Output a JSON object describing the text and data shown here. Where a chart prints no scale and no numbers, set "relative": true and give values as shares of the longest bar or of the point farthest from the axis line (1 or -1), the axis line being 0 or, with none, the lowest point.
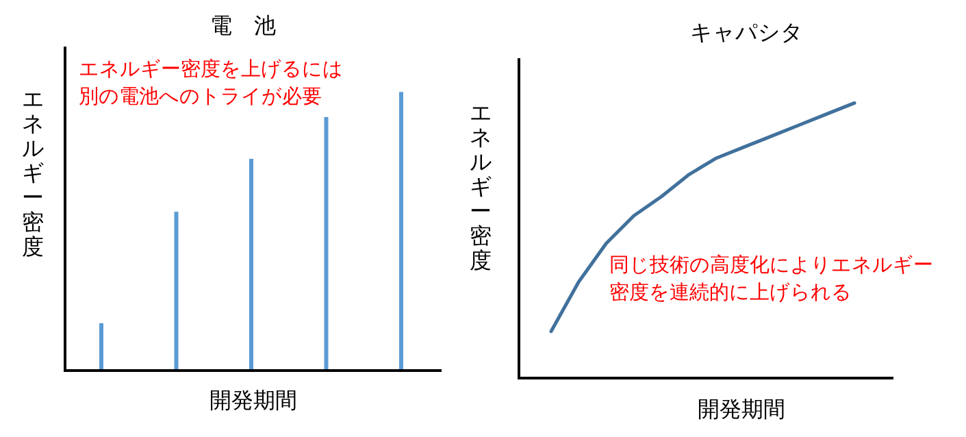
{
  "chart_data": [
    {
      "type": "bar",
      "title": "電　池",
      "xlabel": "開発期間",
      "ylabel": "エネルギー密度",
      "relative": true,
      "grid": false,
      "annotations": [
        "エネルギー密度を上げるには別の電池へのトライが必要"
      ],
      "categories": [
        null,
        null,
        null,
        null,
        null
      ],
      "series": [
        {
          "color": "#5b9bd5",
          "values": [
            0.17,
            0.57,
            0.76,
            0.91,
            1
          ]
        }
      ]
    },
    {
      "type": "line",
      "title": "キャパシタ",
      "xlabel": "開発期間",
      "ylabel": "エネルギー密度",
      "relative": true,
      "grid": false,
      "marker": "none",
      "line_style": "solid",
      "annotations": [
        "同じ技術の高度化によりエネルギー密度を連続的に上げられる"
      ],
      "categories": [
        null,
        null,
        null,
        null,
        null,
        null,
        null,
        null,
        null,
        null,
        null,
        null
      ],
      "series": [
        {
          "color": "#41719c",
          "values": [
            0.17,
            0.35,
            0.49,
            0.59,
            0.66,
            0.74,
            0.8,
            0.84,
            0.88,
            0.92,
            0.96,
            1
          ]
        }
      ]
    }
  ]
}
